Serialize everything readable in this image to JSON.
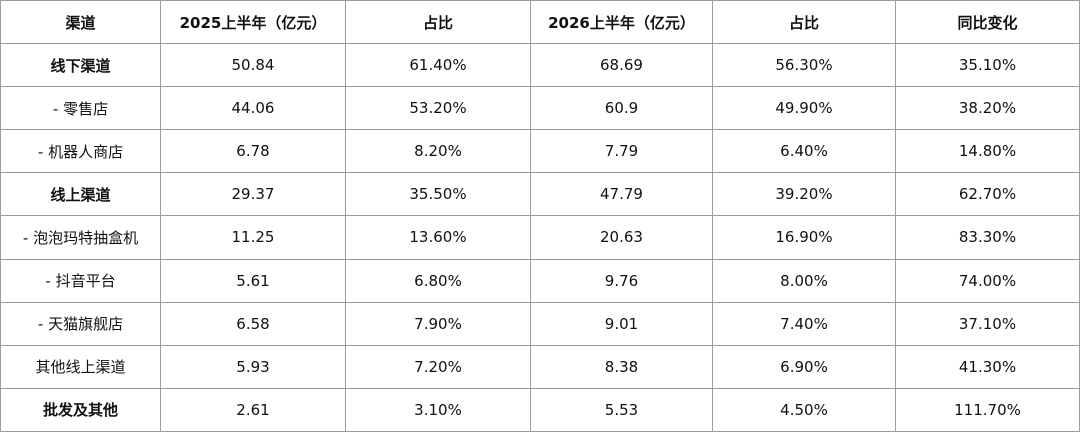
{
  "table": {
    "header": [
      "渠道",
      "2025上半年（亿元）",
      "占比",
      "2026上半年（亿元）",
      "占比",
      "同比变化"
    ],
    "rows": [
      [
        "线下渠道",
        "50.84",
        "61.40%",
        "68.69",
        "56.30%",
        "35.10%"
      ],
      [
        "- 零售店",
        "44.06",
        "53.20%",
        "60.9",
        "49.90%",
        "38.20%"
      ],
      [
        "- 机器人商店",
        "6.78",
        "8.20%",
        "7.79",
        "6.40%",
        "14.80%"
      ],
      [
        "线上渠道",
        "29.37",
        "35.50%",
        "47.79",
        "39.20%",
        "62.70%"
      ],
      [
        "- 泡泡玛特抽盒机",
        "11.25",
        "13.60%",
        "20.63",
        "16.90%",
        "83.30%"
      ],
      [
        "- 抖音平台",
        "5.61",
        "6.80%",
        "9.76",
        "8.00%",
        "74.00%"
      ],
      [
        "- 天猫旗舰店",
        "6.58",
        "7.90%",
        "9.01",
        "7.40%",
        "37.10%"
      ],
      [
        "其他线上渠道",
        "5.93",
        "7.20%",
        "8.38",
        "6.90%",
        "41.30%"
      ],
      [
        "批发及其他",
        "2.61",
        "3.10%",
        "5.53",
        "4.50%",
        "111.70%"
      ]
    ]
  }
}
